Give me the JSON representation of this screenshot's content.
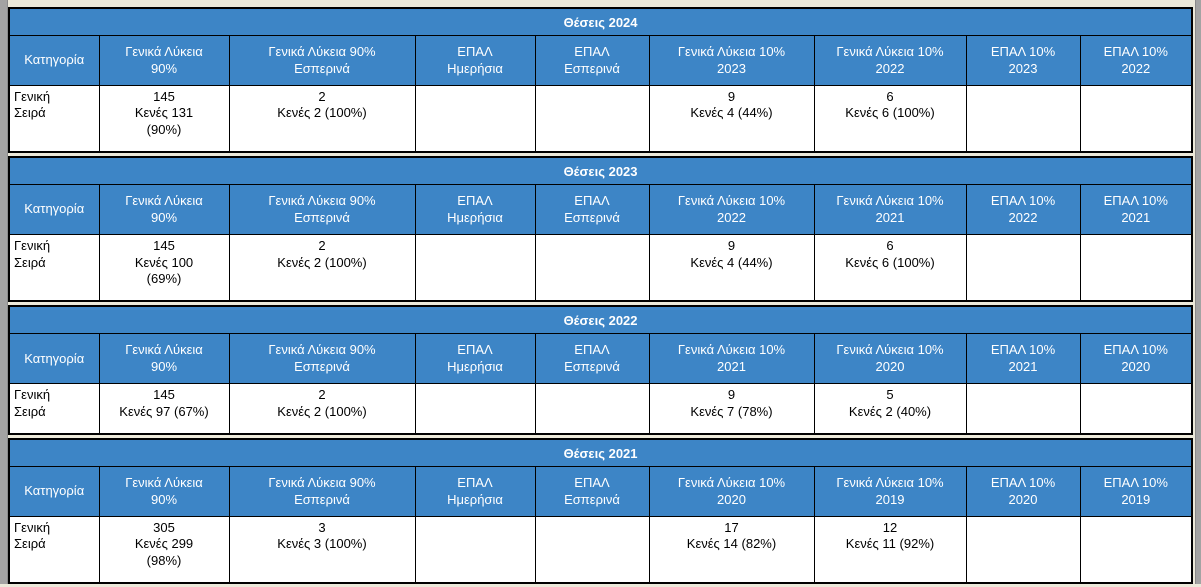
{
  "page": {
    "accent_blue": "#3d85c6",
    "background": "#ece9da",
    "frame_gray": "#a3a3a3",
    "border_color": "#000000",
    "header_text_color": "#ffffff",
    "body_text_color": "#000000"
  },
  "tables": [
    {
      "title": "Θέσεις 2024",
      "columns": [
        "Κατηγορία",
        "Γενικά Λύκεια\n90%",
        "Γενικά Λύκεια 90%\nΕσπερινά",
        "ΕΠΑΛ\nΗμερήσια",
        "ΕΠΑΛ\nΕσπερινά",
        "Γενικά Λύκεια 10%\n2023",
        "Γενικά Λύκεια 10%\n2022",
        "ΕΠΑΛ 10%\n2023",
        "ΕΠΑΛ 10%\n2022"
      ],
      "rows": [
        [
          "Γενική\nΣειρά",
          "145\nΚενές 131\n(90%)",
          "2\nΚενές 2 (100%)",
          "",
          "",
          "9\nΚενές 4 (44%)",
          "6\nΚενές 6 (100%)",
          "",
          ""
        ]
      ]
    },
    {
      "title": "Θέσεις 2023",
      "columns": [
        "Κατηγορία",
        "Γενικά Λύκεια\n90%",
        "Γενικά Λύκεια 90%\nΕσπερινά",
        "ΕΠΑΛ\nΗμερήσια",
        "ΕΠΑΛ\nΕσπερινά",
        "Γενικά Λύκεια 10%\n2022",
        "Γενικά Λύκεια 10%\n2021",
        "ΕΠΑΛ 10%\n2022",
        "ΕΠΑΛ 10%\n2021"
      ],
      "rows": [
        [
          "Γενική\nΣειρά",
          "145\nΚενές 100\n(69%)",
          "2\nΚενές 2 (100%)",
          "",
          "",
          "9\nΚενές 4 (44%)",
          "6\nΚενές 6 (100%)",
          "",
          ""
        ]
      ]
    },
    {
      "title": "Θέσεις 2022",
      "columns": [
        "Κατηγορία",
        "Γενικά Λύκεια\n90%",
        "Γενικά Λύκεια 90%\nΕσπερινά",
        "ΕΠΑΛ\nΗμερήσια",
        "ΕΠΑΛ\nΕσπερινά",
        "Γενικά Λύκεια 10%\n2021",
        "Γενικά Λύκεια 10%\n2020",
        "ΕΠΑΛ 10%\n2021",
        "ΕΠΑΛ 10%\n2020"
      ],
      "rows": [
        [
          "Γενική\nΣειρά",
          "145\nΚενές 97 (67%)",
          "2\nΚενές 2 (100%)",
          "",
          "",
          "9\nΚενές 7 (78%)",
          "5\nΚενές 2 (40%)",
          "",
          ""
        ]
      ]
    },
    {
      "title": "Θέσεις 2021",
      "columns": [
        "Κατηγορία",
        "Γενικά Λύκεια\n90%",
        "Γενικά Λύκεια 90%\nΕσπερινά",
        "ΕΠΑΛ\nΗμερήσια",
        "ΕΠΑΛ\nΕσπερινά",
        "Γενικά Λύκεια 10%\n2020",
        "Γενικά Λύκεια 10%\n2019",
        "ΕΠΑΛ 10%\n2020",
        "ΕΠΑΛ 10%\n2019"
      ],
      "rows": [
        [
          "Γενική\nΣειρά",
          "305\nΚενές 299\n(98%)",
          "3\nΚενές 3 (100%)",
          "",
          "",
          "17\nΚενές 14 (82%)",
          "12\nΚενές 11 (92%)",
          "",
          ""
        ]
      ]
    }
  ]
}
